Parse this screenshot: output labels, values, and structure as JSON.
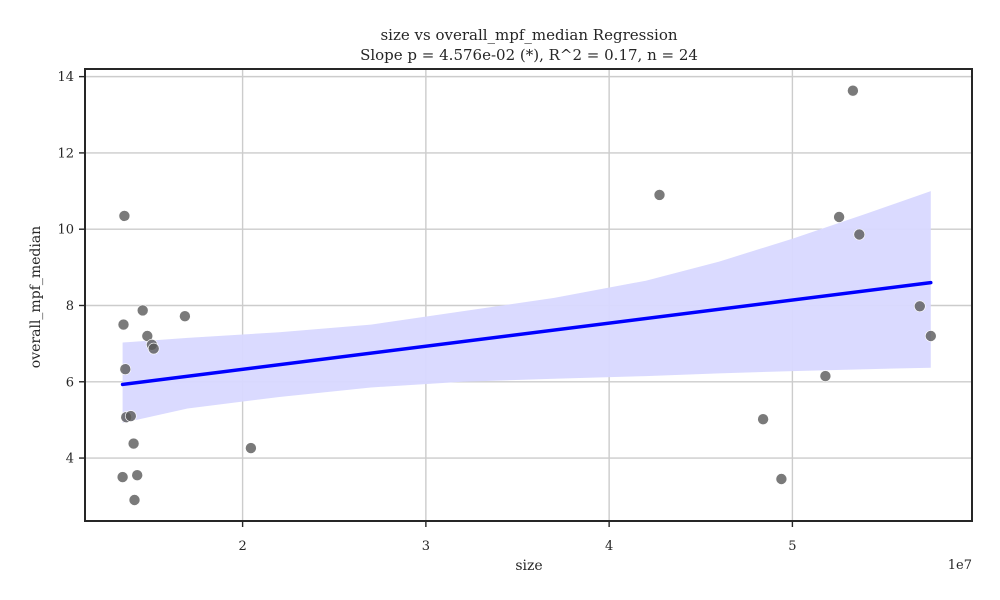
{
  "chart_data": {
    "type": "scatter",
    "title": "size vs overall_mpf_median Regression",
    "subtitle": "Slope p = 4.576e-02 (*), R^2 = 0.17, n = 24",
    "xlabel": "size",
    "ylabel": "overall_mpf_median",
    "x_offset_label": "1e7",
    "xlim": [
      11400000,
      59800000
    ],
    "ylim": [
      2.35,
      14.2
    ],
    "xticks": [
      2,
      3,
      4,
      5
    ],
    "xtick_labels": [
      "2",
      "3",
      "4",
      "5"
    ],
    "yticks": [
      4,
      6,
      8,
      10,
      12,
      14
    ],
    "ytick_labels": [
      "4",
      "6",
      "8",
      "10",
      "12",
      "14"
    ],
    "grid": true,
    "legend": "none",
    "points": [
      {
        "x": 13450000,
        "y": 3.5
      },
      {
        "x": 13500000,
        "y": 7.5
      },
      {
        "x": 13550000,
        "y": 10.35
      },
      {
        "x": 13600000,
        "y": 6.33
      },
      {
        "x": 13650000,
        "y": 5.07
      },
      {
        "x": 13900000,
        "y": 5.1
      },
      {
        "x": 14050000,
        "y": 4.38
      },
      {
        "x": 14100000,
        "y": 2.9
      },
      {
        "x": 14250000,
        "y": 3.55
      },
      {
        "x": 14550000,
        "y": 7.87
      },
      {
        "x": 14800000,
        "y": 7.2
      },
      {
        "x": 15050000,
        "y": 6.97
      },
      {
        "x": 15150000,
        "y": 6.87
      },
      {
        "x": 16850000,
        "y": 7.72
      },
      {
        "x": 20450000,
        "y": 4.26
      },
      {
        "x": 42750000,
        "y": 10.9
      },
      {
        "x": 48400000,
        "y": 5.02
      },
      {
        "x": 49400000,
        "y": 3.45
      },
      {
        "x": 51800000,
        "y": 6.15
      },
      {
        "x": 52550000,
        "y": 10.32
      },
      {
        "x": 53300000,
        "y": 13.63
      },
      {
        "x": 53650000,
        "y": 9.86
      },
      {
        "x": 56950000,
        "y": 7.98
      },
      {
        "x": 57550000,
        "y": 7.2
      }
    ],
    "regression_line": {
      "x": [
        13450000,
        57550000
      ],
      "y": [
        5.93,
        8.6
      ]
    },
    "confidence_band": {
      "x": [
        13450000,
        17000000,
        22000000,
        27000000,
        32000000,
        37000000,
        42000000,
        46000000,
        50000000,
        54000000,
        57550000
      ],
      "lower": [
        4.92,
        5.3,
        5.6,
        5.85,
        6.0,
        6.08,
        6.15,
        6.22,
        6.28,
        6.33,
        6.37
      ],
      "upper": [
        7.03,
        7.15,
        7.3,
        7.5,
        7.85,
        8.2,
        8.65,
        9.15,
        9.75,
        10.4,
        11.0
      ]
    },
    "colors": {
      "points": "#595959",
      "regression_line": "#0000ff",
      "confidence_band": "#d8d8ff",
      "grid": "#cccccc",
      "axes": "#262626"
    }
  }
}
